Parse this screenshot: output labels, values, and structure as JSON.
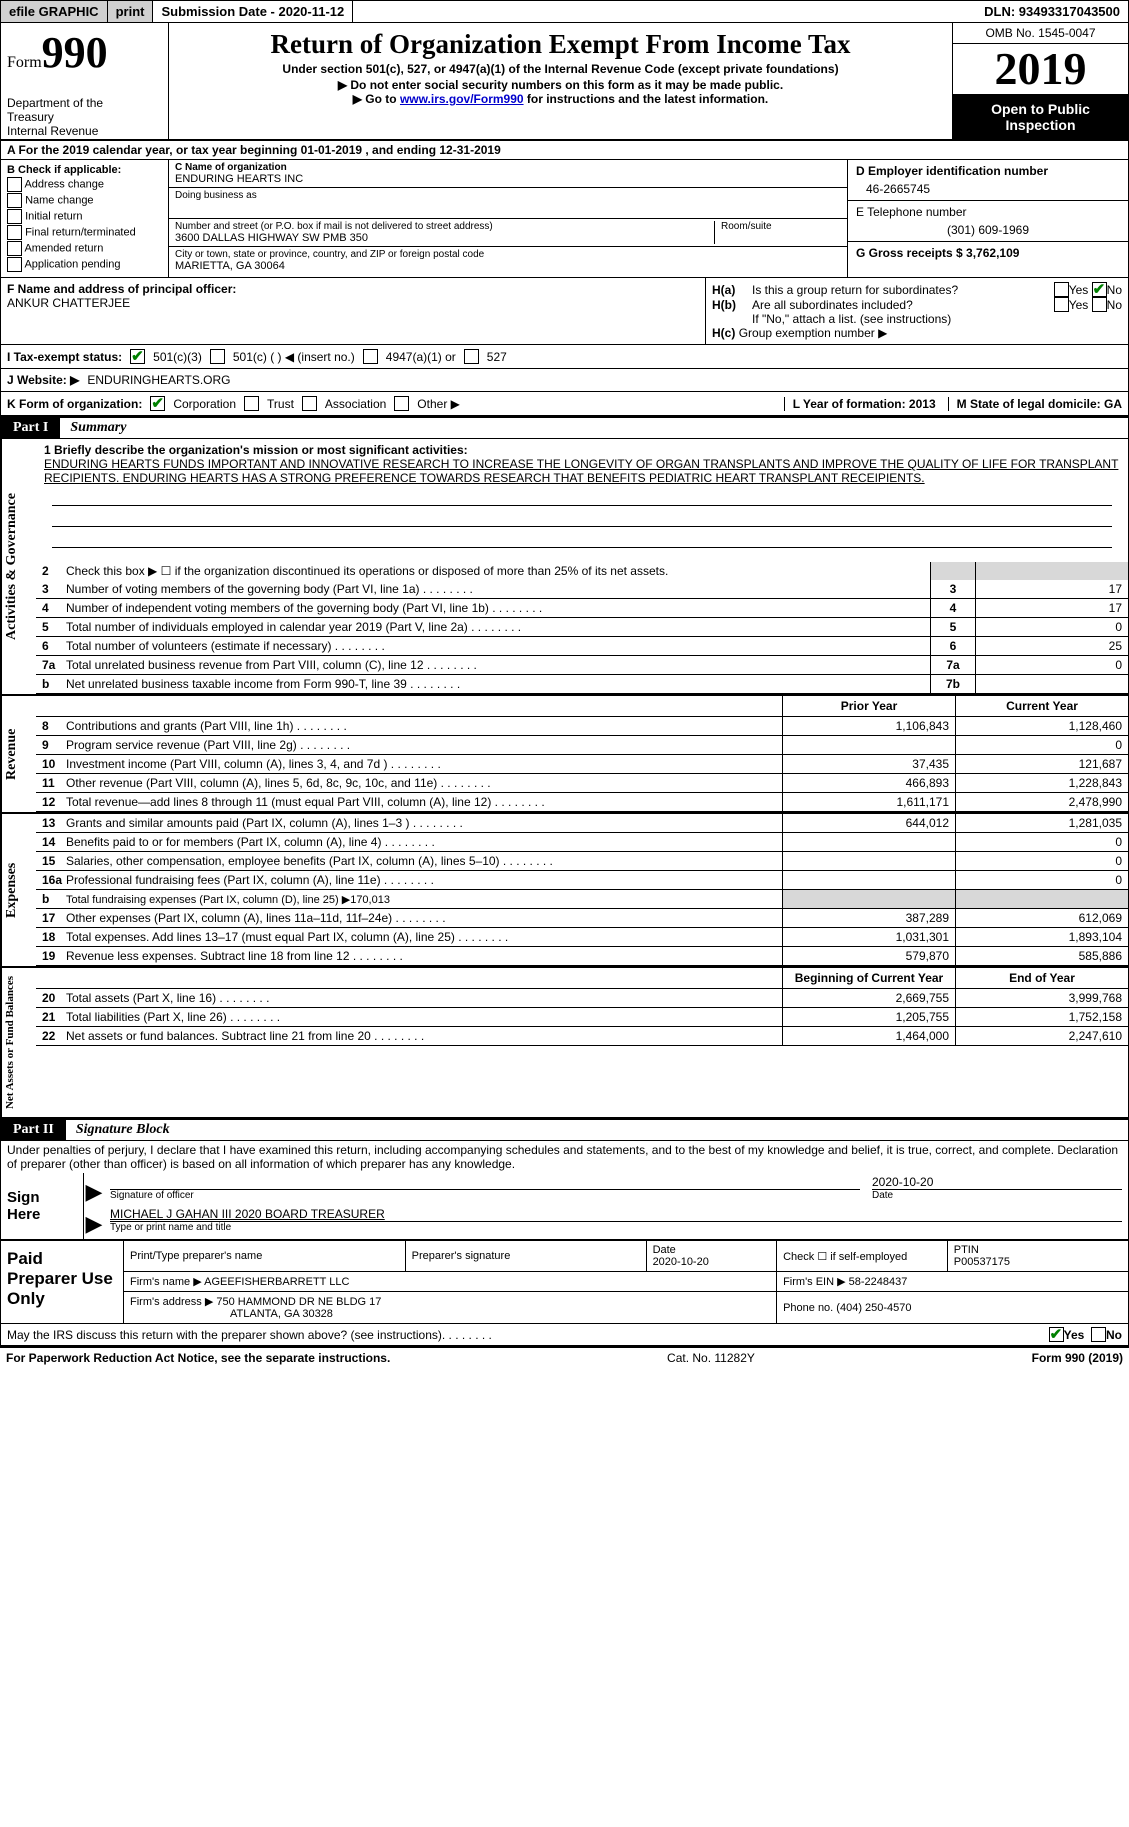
{
  "top_bar": {
    "efile": "efile GRAPHIC",
    "print": "print",
    "submission": "Submission Date - 2020-11-12",
    "dln": "DLN: 93493317043500"
  },
  "header": {
    "form_word": "Form",
    "form_num": "990",
    "dept1": "Department of the",
    "dept2": "Treasury",
    "dept3": "Internal Revenue",
    "title": "Return of Organization Exempt From Income Tax",
    "subtitle": "Under section 501(c), 527, or 4947(a)(1) of the Internal Revenue Code (except private foundations)",
    "note1": "▶ Do not enter social security numbers on this form as it may be made public.",
    "note2_pre": "▶ Go to ",
    "note2_link": "www.irs.gov/Form990",
    "note2_post": " for instructions and the latest information.",
    "omb": "OMB No. 1545-0047",
    "year": "2019",
    "open1": "Open to Public",
    "open2": "Inspection"
  },
  "row_a": "A For the 2019 calendar year, or tax year beginning 01-01-2019   , and ending 12-31-2019",
  "section_b": {
    "title": "B Check if applicable:",
    "opts": [
      "Address change",
      "Name change",
      "Initial return",
      "Final return/terminated",
      "Amended return",
      "Application pending"
    ]
  },
  "section_c": {
    "name_lbl": "C Name of organization",
    "name_val": "ENDURING HEARTS INC",
    "dba_lbl": "Doing business as",
    "addr_lbl": "Number and street (or P.O. box if mail is not delivered to street address)",
    "addr_val": "3600 DALLAS HIGHWAY SW PMB 350",
    "room_lbl": "Room/suite",
    "city_lbl": "City or town, state or province, country, and ZIP or foreign postal code",
    "city_val": "MARIETTA, GA  30064"
  },
  "section_de": {
    "d_lbl": "D Employer identification number",
    "d_val": "46-2665745",
    "e_lbl": "E Telephone number",
    "e_val": "(301) 609-1969",
    "g_lbl": "G Gross receipts $ 3,762,109"
  },
  "section_f": {
    "lbl": "F Name and address of principal officer:",
    "val": "ANKUR CHATTERJEE"
  },
  "section_h": {
    "ha": "Is this a group return for subordinates?",
    "hb": "Are all subordinates included?",
    "hnote": "If \"No,\" attach a list. (see instructions)",
    "hc": "Group exemption number ▶",
    "no_checked": true
  },
  "status": {
    "i_lbl": "I    Tax-exempt status:",
    "opts": [
      "501(c)(3)",
      "501(c) (  ) ◀ (insert no.)",
      "4947(a)(1) or",
      "527"
    ],
    "checked": 0
  },
  "website": {
    "j_lbl": "J   Website: ▶",
    "val": "ENDURINGHEARTS.ORG"
  },
  "row_k": {
    "k_lbl": "K Form of organization:",
    "opts": [
      "Corporation",
      "Trust",
      "Association",
      "Other ▶"
    ],
    "checked": 0,
    "l_lbl": "L Year of formation: 2013",
    "m_lbl": "M State of legal domicile: GA"
  },
  "part1": {
    "label": "Part I",
    "title": "Summary",
    "line1_lbl": "1  Briefly describe the organization's mission or most significant activities:",
    "line1_val": "ENDURING HEARTS FUNDS IMPORTANT AND INNOVATIVE RESEARCH TO INCREASE THE LONGEVITY OF ORGAN TRANSPLANTS AND IMPROVE THE QUALITY OF LIFE FOR TRANSPLANT RECIPIENTS. ENDURING HEARTS HAS A STRONG PREFERENCE TOWARDS RESEARCH THAT BENEFITS PEDIATRIC HEART TRANSPLANT RECEIPIENTS.",
    "line2": "Check this box ▶ ☐  if the organization discontinued its operations or disposed of more than 25% of its net assets.",
    "vert_a": "Activities & Governance",
    "vert_b": "Revenue",
    "vert_c": "Expenses",
    "vert_d": "Net Assets or Fund Balances",
    "gov_rows": [
      {
        "n": "3",
        "t": "Number of voting members of the governing body (Part VI, line 1a)",
        "v": "17"
      },
      {
        "n": "4",
        "t": "Number of independent voting members of the governing body (Part VI, line 1b)",
        "v": "17"
      },
      {
        "n": "5",
        "t": "Total number of individuals employed in calendar year 2019 (Part V, line 2a)",
        "v": "0"
      },
      {
        "n": "6",
        "t": "Total number of volunteers (estimate if necessary)",
        "v": "25"
      },
      {
        "n": "7a",
        "t": "Total unrelated business revenue from Part VIII, column (C), line 12",
        "v": "0"
      },
      {
        "n": "b",
        "t": "Net unrelated business taxable income from Form 990-T, line 39",
        "code": "7b",
        "v": ""
      }
    ],
    "col_headers": [
      "Prior Year",
      "Current Year"
    ],
    "rev_rows": [
      {
        "n": "8",
        "t": "Contributions and grants (Part VIII, line 1h)",
        "p": "1,106,843",
        "c": "1,128,460"
      },
      {
        "n": "9",
        "t": "Program service revenue (Part VIII, line 2g)",
        "p": "",
        "c": "0"
      },
      {
        "n": "10",
        "t": "Investment income (Part VIII, column (A), lines 3, 4, and 7d )",
        "p": "37,435",
        "c": "121,687"
      },
      {
        "n": "11",
        "t": "Other revenue (Part VIII, column (A), lines 5, 6d, 8c, 9c, 10c, and 11e)",
        "p": "466,893",
        "c": "1,228,843"
      },
      {
        "n": "12",
        "t": "Total revenue—add lines 8 through 11 (must equal Part VIII, column (A), line 12)",
        "p": "1,611,171",
        "c": "2,478,990"
      }
    ],
    "exp_rows": [
      {
        "n": "13",
        "t": "Grants and similar amounts paid (Part IX, column (A), lines 1–3 )",
        "p": "644,012",
        "c": "1,281,035"
      },
      {
        "n": "14",
        "t": "Benefits paid to or for members (Part IX, column (A), line 4)",
        "p": "",
        "c": "0"
      },
      {
        "n": "15",
        "t": "Salaries, other compensation, employee benefits (Part IX, column (A), lines 5–10)",
        "p": "",
        "c": "0"
      },
      {
        "n": "16a",
        "t": "Professional fundraising fees (Part IX, column (A), line 11e)",
        "p": "",
        "c": "0"
      },
      {
        "n": "b",
        "t": "Total fundraising expenses (Part IX, column (D), line 25) ▶170,013",
        "shaded": true
      },
      {
        "n": "17",
        "t": "Other expenses (Part IX, column (A), lines 11a–11d, 11f–24e)",
        "p": "387,289",
        "c": "612,069"
      },
      {
        "n": "18",
        "t": "Total expenses. Add lines 13–17 (must equal Part IX, column (A), line 25)",
        "p": "1,031,301",
        "c": "1,893,104"
      },
      {
        "n": "19",
        "t": "Revenue less expenses. Subtract line 18 from line 12",
        "p": "579,870",
        "c": "585,886"
      }
    ],
    "na_headers": [
      "Beginning of Current Year",
      "End of Year"
    ],
    "na_rows": [
      {
        "n": "20",
        "t": "Total assets (Part X, line 16)",
        "p": "2,669,755",
        "c": "3,999,768"
      },
      {
        "n": "21",
        "t": "Total liabilities (Part X, line 26)",
        "p": "1,205,755",
        "c": "1,752,158"
      },
      {
        "n": "22",
        "t": "Net assets or fund balances. Subtract line 21 from line 20",
        "p": "1,464,000",
        "c": "2,247,610"
      }
    ]
  },
  "part2": {
    "label": "Part II",
    "title": "Signature Block",
    "perjury": "Under penalties of perjury, I declare that I have examined this return, including accompanying schedules and statements, and to the best of my knowledge and belief, it is true, correct, and complete. Declaration of preparer (other than officer) is based on all information of which preparer has any knowledge.",
    "sign_here": "Sign Here",
    "sig_officer": "Signature of officer",
    "sig_date": "2020-10-20",
    "date_lbl": "Date",
    "sig_name": "MICHAEL J GAHAN III 2020 BOARD TREASURER",
    "sig_name_lbl": "Type or print name and title"
  },
  "preparer": {
    "label": "Paid Preparer Use Only",
    "h1": "Print/Type preparer's name",
    "h2": "Preparer's signature",
    "h3_a": "Date",
    "h3_b": "2020-10-20",
    "h4": "Check ☐ if self-employed",
    "h5_a": "PTIN",
    "h5_b": "P00537175",
    "firm_name_lbl": "Firm's name    ▶",
    "firm_name": "AGEEFISHERBARRETT LLC",
    "firm_ein_lbl": "Firm's EIN ▶",
    "firm_ein": "58-2248437",
    "firm_addr_lbl": "Firm's address ▶",
    "firm_addr1": "750 HAMMOND DR NE BLDG 17",
    "firm_addr2": "ATLANTA, GA  30328",
    "phone_lbl": "Phone no.",
    "phone": "(404) 250-4570"
  },
  "discuss": {
    "text": "May the IRS discuss this return with the preparer shown above? (see instructions)",
    "yes_checked": true
  },
  "footer": {
    "left": "For Paperwork Reduction Act Notice, see the separate instructions.",
    "mid": "Cat. No. 11282Y",
    "right": "Form 990 (2019)"
  },
  "labels": {
    "yes": "Yes",
    "no": "No",
    "ha_pre": "H(a)",
    "hb_pre": "H(b)",
    "hc_pre": "H(c)",
    "two": "2"
  }
}
